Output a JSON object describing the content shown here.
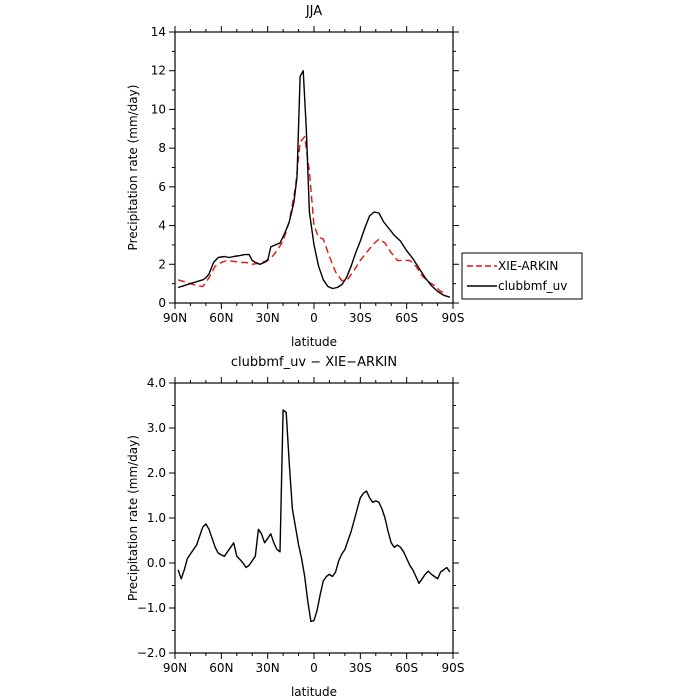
{
  "chart_data": [
    {
      "type": "line",
      "title": "JJA",
      "xlabel": "latitude",
      "ylabel": "Precipitation rate  (mm/day)",
      "xlim": [
        90,
        -90
      ],
      "ylim": [
        0,
        14
      ],
      "xticks": [
        90,
        60,
        30,
        0,
        -30,
        -60,
        -90
      ],
      "xtick_labels": [
        "90N",
        "60N",
        "30N",
        "0",
        "30S",
        "60S",
        "90S"
      ],
      "yticks": [
        0,
        2,
        4,
        6,
        8,
        10,
        12,
        14
      ],
      "ytick_labels": [
        "0",
        "2",
        "4",
        "6",
        "8",
        "10",
        "12",
        "14"
      ],
      "legend_position": "right",
      "series": [
        {
          "name": "XIE-ARKIN",
          "color": "#e8120f",
          "dash": "dashed",
          "x": [
            88,
            84,
            80,
            76,
            72,
            68,
            64,
            60,
            56,
            52,
            48,
            44,
            40,
            36,
            32,
            28,
            24,
            20,
            16,
            12,
            9,
            6,
            3,
            0,
            -3,
            -6,
            -10,
            -14,
            -18,
            -22,
            -26,
            -30,
            -34,
            -38,
            -42,
            -46,
            -50,
            -54,
            -58,
            -62,
            -66,
            -70,
            -74,
            -78,
            -82,
            -86
          ],
          "y": [
            1.2,
            1.1,
            1.0,
            0.9,
            0.85,
            1.3,
            1.9,
            2.1,
            2.2,
            2.15,
            2.1,
            2.1,
            2.0,
            2.05,
            2.15,
            2.3,
            2.7,
            3.2,
            4.2,
            6.0,
            8.3,
            8.6,
            6.8,
            4.0,
            3.4,
            3.3,
            2.4,
            1.6,
            1.15,
            1.25,
            1.7,
            2.2,
            2.6,
            3.0,
            3.3,
            3.1,
            2.6,
            2.2,
            2.2,
            2.2,
            1.9,
            1.4,
            1.1,
            0.9,
            0.6,
            0.5
          ]
        },
        {
          "name": "clubbmf_uv",
          "color": "#000000",
          "dash": "solid",
          "x": [
            88,
            84,
            80,
            76,
            72,
            70,
            68,
            65,
            62,
            58,
            55,
            52,
            48,
            45,
            42,
            40,
            38,
            35,
            32,
            30,
            28,
            25,
            22,
            19,
            16,
            13,
            11,
            9,
            7,
            5,
            3,
            0,
            -3,
            -6,
            -9,
            -12,
            -15,
            -18,
            -21,
            -24,
            -27,
            -30,
            -33,
            -36,
            -39,
            -42,
            -45,
            -48,
            -52,
            -56,
            -60,
            -64,
            -68,
            -72,
            -76,
            -80,
            -84,
            -88
          ],
          "y": [
            0.8,
            0.9,
            1.0,
            1.1,
            1.2,
            1.3,
            1.5,
            2.1,
            2.35,
            2.4,
            2.35,
            2.4,
            2.45,
            2.5,
            2.5,
            2.2,
            2.1,
            2.0,
            2.1,
            2.2,
            2.9,
            3.0,
            3.1,
            3.6,
            4.2,
            5.2,
            6.5,
            11.7,
            12.0,
            9.0,
            4.7,
            3.0,
            1.9,
            1.2,
            0.85,
            0.75,
            0.8,
            0.95,
            1.3,
            1.9,
            2.6,
            3.2,
            3.9,
            4.5,
            4.7,
            4.65,
            4.2,
            3.9,
            3.5,
            3.2,
            2.7,
            2.3,
            1.8,
            1.3,
            0.9,
            0.6,
            0.4,
            0.3
          ]
        }
      ]
    },
    {
      "type": "line",
      "title": "clubbmf_uv − XIE−ARKIN",
      "xlabel": "latitude",
      "ylabel": "Precipitation rate  (mm/day)",
      "xlim": [
        90,
        -90
      ],
      "ylim": [
        -2.0,
        4.0
      ],
      "xticks": [
        90,
        60,
        30,
        0,
        -30,
        -60,
        -90
      ],
      "xtick_labels": [
        "90N",
        "60N",
        "30N",
        "0",
        "30S",
        "60S",
        "90S"
      ],
      "yticks": [
        -2,
        -1,
        0,
        1,
        2,
        3,
        4
      ],
      "ytick_labels": [
        "−2.0",
        "−1.0",
        "0.0",
        "1.0",
        "2.0",
        "3.0",
        "4.0"
      ],
      "series": [
        {
          "color": "#000000",
          "dash": "solid",
          "x": [
            88,
            86,
            84,
            82,
            80,
            78,
            76,
            74,
            72,
            70,
            68,
            66,
            64,
            62,
            60,
            58,
            56,
            54,
            52,
            50,
            48,
            46,
            44,
            42,
            40,
            38,
            36,
            34,
            32,
            30,
            28,
            26,
            24,
            22,
            20,
            18,
            16,
            14,
            12,
            10,
            8,
            6,
            4,
            2,
            0,
            -2,
            -4,
            -6,
            -8,
            -10,
            -12,
            -14,
            -16,
            -18,
            -20,
            -22,
            -24,
            -26,
            -28,
            -30,
            -32,
            -34,
            -36,
            -38,
            -40,
            -42,
            -44,
            -46,
            -48,
            -50,
            -52,
            -54,
            -56,
            -58,
            -60,
            -62,
            -64,
            -66,
            -68,
            -70,
            -72,
            -74,
            -76,
            -78,
            -80,
            -82,
            -84,
            -86,
            -88
          ],
          "y": [
            -0.15,
            -0.35,
            -0.15,
            0.1,
            0.2,
            0.3,
            0.4,
            0.6,
            0.8,
            0.87,
            0.75,
            0.55,
            0.35,
            0.22,
            0.18,
            0.15,
            0.25,
            0.35,
            0.45,
            0.15,
            0.08,
            0.0,
            -0.1,
            -0.05,
            0.05,
            0.15,
            0.75,
            0.65,
            0.45,
            0.55,
            0.65,
            0.45,
            0.3,
            0.25,
            3.4,
            3.35,
            2.2,
            1.2,
            0.8,
            0.4,
            0.1,
            -0.3,
            -0.85,
            -1.3,
            -1.28,
            -1.05,
            -0.7,
            -0.4,
            -0.3,
            -0.25,
            -0.3,
            -0.2,
            0.05,
            0.2,
            0.3,
            0.5,
            0.7,
            0.95,
            1.2,
            1.45,
            1.55,
            1.6,
            1.45,
            1.35,
            1.38,
            1.35,
            1.2,
            1.0,
            0.7,
            0.45,
            0.35,
            0.4,
            0.35,
            0.25,
            0.1,
            -0.05,
            -0.15,
            -0.3,
            -0.45,
            -0.35,
            -0.25,
            -0.18,
            -0.25,
            -0.3,
            -0.35,
            -0.2,
            -0.15,
            -0.1,
            -0.2
          ]
        }
      ]
    }
  ]
}
